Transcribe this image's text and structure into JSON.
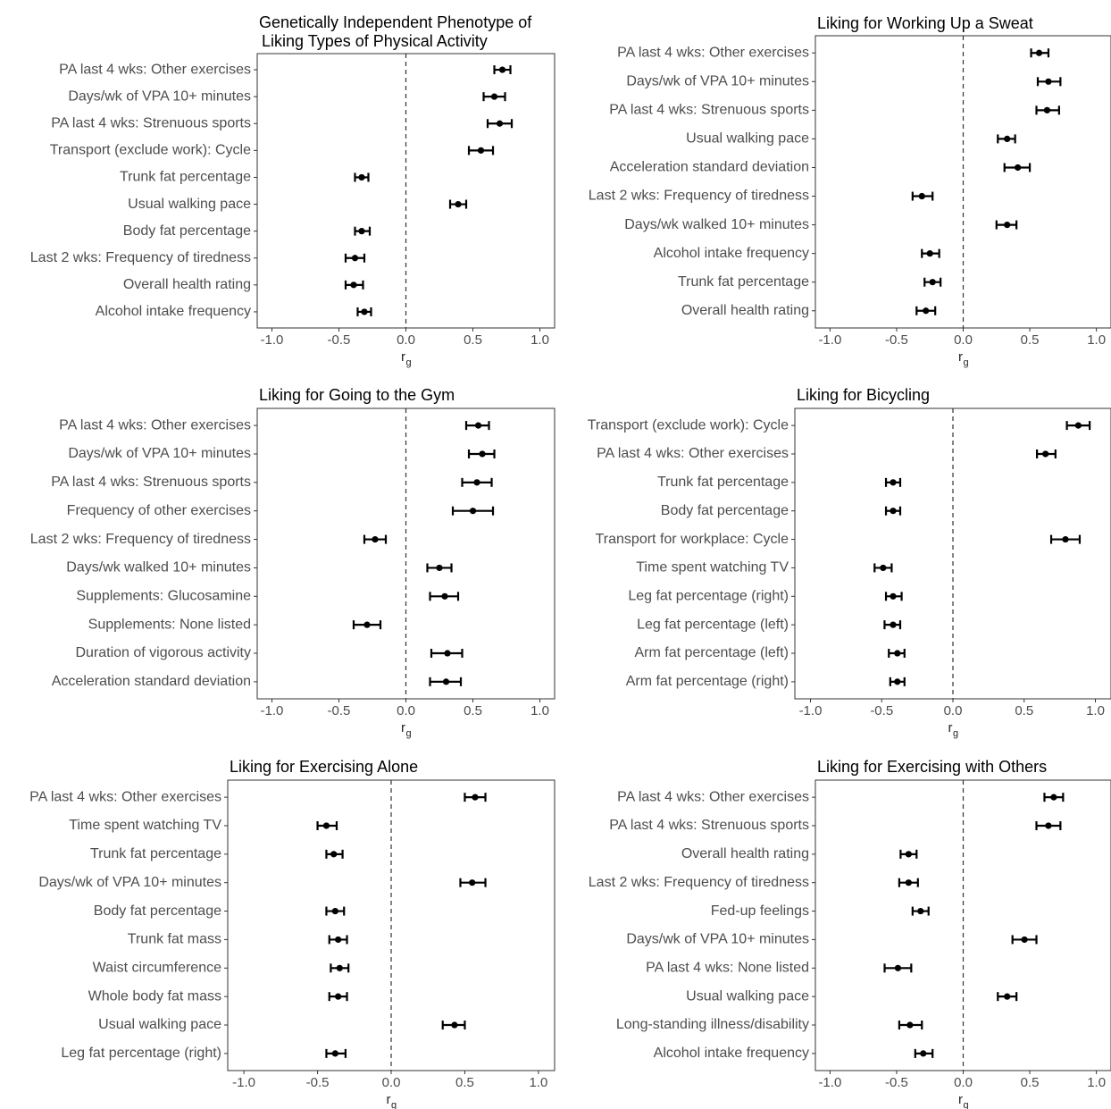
{
  "chart_data": [
    {
      "type": "scatter",
      "title_lines": [
        "Genetically Independent Phenotype of",
        "Liking Types of Physical Activity"
      ],
      "xlabel": "r",
      "xlabel_sub": "g",
      "xlim": [
        -1.0,
        1.0
      ],
      "xticks": [
        "-1.0",
        "-0.5",
        "0.0",
        "0.5",
        "1.0"
      ],
      "reference_line": 0,
      "grid": false,
      "rows": [
        {
          "label": "PA last 4 wks: Other exercises",
          "value": 0.72,
          "lo": 0.66,
          "hi": 0.78
        },
        {
          "label": "Days/wk of VPA 10+ minutes",
          "value": 0.66,
          "lo": 0.58,
          "hi": 0.74
        },
        {
          "label": "PA last 4 wks: Strenuous sports",
          "value": 0.7,
          "lo": 0.61,
          "hi": 0.79
        },
        {
          "label": "Transport (exclude work): Cycle",
          "value": 0.56,
          "lo": 0.47,
          "hi": 0.65
        },
        {
          "label": "Trunk fat percentage",
          "value": -0.33,
          "lo": -0.38,
          "hi": -0.28
        },
        {
          "label": "Usual walking pace",
          "value": 0.39,
          "lo": 0.33,
          "hi": 0.45
        },
        {
          "label": "Body fat percentage",
          "value": -0.33,
          "lo": -0.38,
          "hi": -0.27
        },
        {
          "label": "Last 2 wks: Frequency of tiredness",
          "value": -0.38,
          "lo": -0.45,
          "hi": -0.31
        },
        {
          "label": "Overall health rating",
          "value": -0.39,
          "lo": -0.45,
          "hi": -0.32
        },
        {
          "label": "Alcohol intake frequency",
          "value": -0.31,
          "lo": -0.36,
          "hi": -0.26
        }
      ]
    },
    {
      "type": "scatter",
      "title_lines": [
        "Liking for Working Up a Sweat"
      ],
      "xlabel": "r",
      "xlabel_sub": "g",
      "xlim": [
        -1.0,
        1.0
      ],
      "xticks": [
        "-1.0",
        "-0.5",
        "0.0",
        "0.5",
        "1.0"
      ],
      "reference_line": 0,
      "grid": false,
      "rows": [
        {
          "label": "PA last 4 wks: Other exercises",
          "value": 0.57,
          "lo": 0.51,
          "hi": 0.64
        },
        {
          "label": "Days/wk of VPA 10+ minutes",
          "value": 0.64,
          "lo": 0.56,
          "hi": 0.73
        },
        {
          "label": "PA last 4 wks: Strenuous sports",
          "value": 0.63,
          "lo": 0.55,
          "hi": 0.72
        },
        {
          "label": "Usual walking pace",
          "value": 0.33,
          "lo": 0.26,
          "hi": 0.39
        },
        {
          "label": "Acceleration standard deviation",
          "value": 0.41,
          "lo": 0.31,
          "hi": 0.5
        },
        {
          "label": "Last 2 wks: Frequency of tiredness",
          "value": -0.31,
          "lo": -0.38,
          "hi": -0.23
        },
        {
          "label": "Days/wk walked 10+ minutes",
          "value": 0.33,
          "lo": 0.25,
          "hi": 0.4
        },
        {
          "label": "Alcohol intake frequency",
          "value": -0.25,
          "lo": -0.31,
          "hi": -0.18
        },
        {
          "label": "Trunk fat percentage",
          "value": -0.23,
          "lo": -0.29,
          "hi": -0.17
        },
        {
          "label": "Overall health rating",
          "value": -0.28,
          "lo": -0.35,
          "hi": -0.21
        }
      ]
    },
    {
      "type": "scatter",
      "title_lines": [
        "Liking for Going to the Gym"
      ],
      "xlabel": "r",
      "xlabel_sub": "g",
      "xlim": [
        -1.0,
        1.0
      ],
      "xticks": [
        "-1.0",
        "-0.5",
        "0.0",
        "0.5",
        "1.0"
      ],
      "reference_line": 0,
      "grid": false,
      "rows": [
        {
          "label": "PA last 4 wks: Other exercises",
          "value": 0.54,
          "lo": 0.45,
          "hi": 0.62
        },
        {
          "label": "Days/wk of VPA 10+ minutes",
          "value": 0.57,
          "lo": 0.47,
          "hi": 0.66
        },
        {
          "label": "PA last 4 wks: Strenuous sports",
          "value": 0.53,
          "lo": 0.42,
          "hi": 0.64
        },
        {
          "label": "Frequency of other exercises",
          "value": 0.5,
          "lo": 0.35,
          "hi": 0.65
        },
        {
          "label": "Last 2 wks: Frequency of tiredness",
          "value": -0.23,
          "lo": -0.31,
          "hi": -0.15
        },
        {
          "label": "Days/wk walked 10+ minutes",
          "value": 0.25,
          "lo": 0.16,
          "hi": 0.34
        },
        {
          "label": "Supplements: Glucosamine",
          "value": 0.29,
          "lo": 0.18,
          "hi": 0.39
        },
        {
          "label": "Supplements: None listed",
          "value": -0.29,
          "lo": -0.39,
          "hi": -0.19
        },
        {
          "label": "Duration of vigorous activity",
          "value": 0.31,
          "lo": 0.19,
          "hi": 0.42
        },
        {
          "label": "Acceleration standard deviation",
          "value": 0.3,
          "lo": 0.18,
          "hi": 0.41
        }
      ]
    },
    {
      "type": "scatter",
      "title_lines": [
        "Liking for Bicycling"
      ],
      "xlabel": "r",
      "xlabel_sub": "g",
      "xlim": [
        -1.0,
        1.0
      ],
      "xticks": [
        "-1.0",
        "-0.5",
        "0.0",
        "0.5",
        "1.0"
      ],
      "reference_line": 0,
      "grid": false,
      "rows": [
        {
          "label": "Transport (exclude work): Cycle",
          "value": 0.88,
          "lo": 0.8,
          "hi": 0.96
        },
        {
          "label": "PA last 4 wks: Other exercises",
          "value": 0.65,
          "lo": 0.59,
          "hi": 0.72
        },
        {
          "label": "Trunk fat percentage",
          "value": -0.42,
          "lo": -0.47,
          "hi": -0.37
        },
        {
          "label": "Body fat percentage",
          "value": -0.42,
          "lo": -0.47,
          "hi": -0.37
        },
        {
          "label": "Transport for workplace: Cycle",
          "value": 0.79,
          "lo": 0.69,
          "hi": 0.89
        },
        {
          "label": "Time spent watching TV",
          "value": -0.49,
          "lo": -0.55,
          "hi": -0.43
        },
        {
          "label": "Leg fat percentage (right)",
          "value": -0.42,
          "lo": -0.47,
          "hi": -0.36
        },
        {
          "label": "Leg fat percentage (left)",
          "value": -0.42,
          "lo": -0.48,
          "hi": -0.37
        },
        {
          "label": "Arm fat percentage (left)",
          "value": -0.39,
          "lo": -0.45,
          "hi": -0.34
        },
        {
          "label": "Arm fat percentage (right)",
          "value": -0.39,
          "lo": -0.44,
          "hi": -0.34
        }
      ]
    },
    {
      "type": "scatter",
      "title_lines": [
        "Liking for Exercising Alone"
      ],
      "xlabel": "r",
      "xlabel_sub": "g",
      "xlim": [
        -1.0,
        1.0
      ],
      "xticks": [
        "-1.0",
        "-0.5",
        "0.0",
        "0.5",
        "1.0"
      ],
      "reference_line": 0,
      "grid": false,
      "rows": [
        {
          "label": "PA last 4 wks: Other exercises",
          "value": 0.57,
          "lo": 0.5,
          "hi": 0.64
        },
        {
          "label": "Time spent watching TV",
          "value": -0.44,
          "lo": -0.5,
          "hi": -0.37
        },
        {
          "label": "Trunk fat percentage",
          "value": -0.39,
          "lo": -0.44,
          "hi": -0.33
        },
        {
          "label": "Days/wk of VPA 10+ minutes",
          "value": 0.55,
          "lo": 0.47,
          "hi": 0.64
        },
        {
          "label": "Body fat percentage",
          "value": -0.38,
          "lo": -0.44,
          "hi": -0.32
        },
        {
          "label": "Trunk fat mass",
          "value": -0.36,
          "lo": -0.42,
          "hi": -0.3
        },
        {
          "label": "Waist circumference",
          "value": -0.35,
          "lo": -0.41,
          "hi": -0.29
        },
        {
          "label": "Whole body fat mass",
          "value": -0.36,
          "lo": -0.42,
          "hi": -0.3
        },
        {
          "label": "Usual walking pace",
          "value": 0.43,
          "lo": 0.35,
          "hi": 0.5
        },
        {
          "label": "Leg fat percentage (right)",
          "value": -0.38,
          "lo": -0.44,
          "hi": -0.31
        }
      ]
    },
    {
      "type": "scatter",
      "title_lines": [
        "Liking for Exercising with Others"
      ],
      "xlabel": "r",
      "xlabel_sub": "g",
      "xlim": [
        -1.0,
        1.0
      ],
      "xticks": [
        "-1.0",
        "-0.5",
        "0.0",
        "0.5",
        "1.0"
      ],
      "reference_line": 0,
      "grid": false,
      "rows": [
        {
          "label": "PA last 4 wks: Other exercises",
          "value": 0.68,
          "lo": 0.61,
          "hi": 0.75
        },
        {
          "label": "PA last 4 wks: Strenuous sports",
          "value": 0.64,
          "lo": 0.55,
          "hi": 0.73
        },
        {
          "label": "Overall health rating",
          "value": -0.41,
          "lo": -0.47,
          "hi": -0.35
        },
        {
          "label": "Last 2 wks: Frequency of tiredness",
          "value": -0.41,
          "lo": -0.48,
          "hi": -0.34
        },
        {
          "label": "Fed-up feelings",
          "value": -0.32,
          "lo": -0.38,
          "hi": -0.26
        },
        {
          "label": "Days/wk of VPA 10+ minutes",
          "value": 0.46,
          "lo": 0.37,
          "hi": 0.55
        },
        {
          "label": "PA last 4 wks: None listed",
          "value": -0.49,
          "lo": -0.59,
          "hi": -0.39
        },
        {
          "label": "Usual walking pace",
          "value": 0.33,
          "lo": 0.26,
          "hi": 0.4
        },
        {
          "label": "Long-standing illness/disability",
          "value": -0.4,
          "lo": -0.48,
          "hi": -0.31
        },
        {
          "label": "Alcohol intake frequency",
          "value": -0.3,
          "lo": -0.36,
          "hi": -0.23
        }
      ]
    }
  ]
}
